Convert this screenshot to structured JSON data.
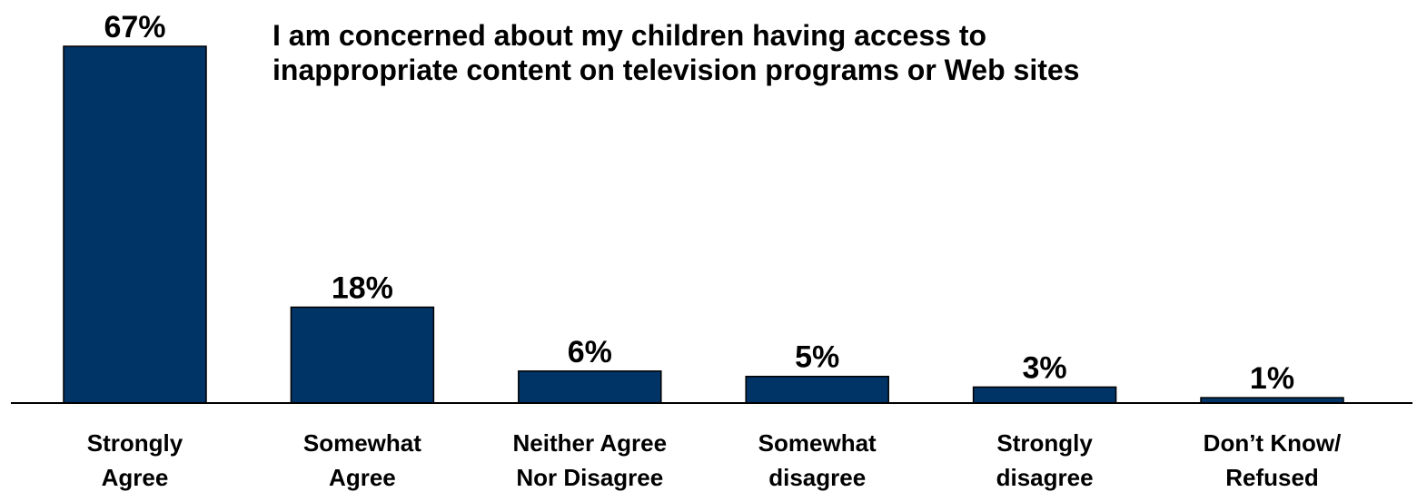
{
  "chart_data": {
    "type": "bar",
    "title_lines": [
      "I am concerned about my children having access to",
      "inappropriate content on television programs or Web sites"
    ],
    "categories": [
      [
        "Strongly",
        "Agree"
      ],
      [
        "Somewhat",
        "Agree"
      ],
      [
        "Neither Agree",
        "Nor Disagree"
      ],
      [
        "Somewhat",
        "disagree"
      ],
      [
        "Strongly",
        "disagree"
      ],
      [
        "Don’t Know/",
        "Refused"
      ]
    ],
    "values": [
      67,
      18,
      6,
      5,
      3,
      1
    ],
    "data_labels": [
      "67%",
      "18%",
      "6%",
      "5%",
      "3%",
      "1%"
    ],
    "unit": "%",
    "ylim": [
      0,
      67
    ],
    "grid": false,
    "legend": "none",
    "colors": {
      "bar_fill": "#003366",
      "bar_stroke": "#000000",
      "text": "#000000",
      "axis": "#000000"
    }
  }
}
